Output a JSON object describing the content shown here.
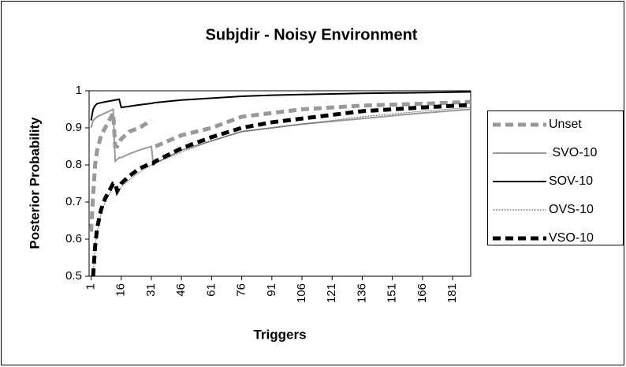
{
  "chart_data": {
    "type": "line",
    "title": "Subjdir - Noisy Environment",
    "x_label": "Triggers",
    "y_label": "Posterior Probability",
    "x": [
      1,
      2,
      3,
      4,
      6,
      8,
      10,
      12,
      13,
      14,
      15,
      16,
      20,
      25,
      31,
      32,
      33,
      46,
      61,
      76,
      91,
      106,
      136,
      166,
      190
    ],
    "xlim": [
      0,
      190
    ],
    "xticks": [
      1,
      16,
      31,
      46,
      61,
      76,
      91,
      106,
      121,
      136,
      151,
      166,
      181
    ],
    "ylim": [
      0.5,
      1
    ],
    "yticks": [
      1,
      0.9,
      0.8,
      0.7,
      0.6,
      0.5
    ],
    "legend": "right",
    "series": [
      {
        "name": "Unset",
        "color": "#999999",
        "width": 5,
        "dash": "10 6",
        "values": [
          0.62,
          0.72,
          0.8,
          0.84,
          0.88,
          0.9,
          0.92,
          0.94,
          0.85,
          0.85,
          0.86,
          0.87,
          0.89,
          0.9,
          0.92,
          null,
          0.85,
          0.88,
          0.9,
          0.93,
          0.94,
          0.95,
          0.96,
          0.965,
          0.97
        ]
      },
      {
        "name": " SVO-10",
        "color": "#999999",
        "width": 2,
        "dash": "none",
        "values": [
          0.9,
          0.92,
          0.925,
          0.93,
          0.935,
          0.94,
          0.945,
          0.95,
          0.81,
          0.815,
          0.82,
          0.82,
          0.83,
          0.84,
          0.85,
          0.8,
          0.805,
          0.84,
          0.865,
          0.89,
          0.9,
          0.91,
          0.925,
          0.94,
          0.95
        ]
      },
      {
        "name": "SOV-10",
        "color": "#000000",
        "width": 2,
        "dash": "none",
        "values": [
          0.92,
          0.95,
          0.96,
          0.965,
          0.968,
          0.97,
          0.972,
          0.974,
          0.975,
          0.976,
          0.977,
          0.955,
          0.958,
          0.962,
          0.966,
          0.967,
          0.968,
          0.975,
          0.98,
          0.985,
          0.988,
          0.99,
          0.993,
          0.995,
          0.997
        ]
      },
      {
        "name": "OVS-10",
        "color": "#444444",
        "width": 1,
        "dash": "1 1",
        "values": [
          null,
          0.5,
          0.58,
          0.62,
          0.67,
          0.7,
          0.72,
          0.74,
          0.74,
          0.72,
          0.73,
          0.74,
          0.76,
          0.78,
          0.8,
          0.8,
          0.805,
          0.835,
          0.865,
          0.89,
          0.9,
          0.91,
          0.93,
          0.945,
          0.955
        ]
      },
      {
        "name": "VSO-10",
        "color": "#000000",
        "width": 5,
        "dash": "10 6",
        "values": [
          null,
          0.5,
          0.58,
          0.63,
          0.68,
          0.71,
          0.73,
          0.75,
          0.75,
          0.73,
          0.74,
          0.75,
          0.77,
          0.79,
          0.805,
          0.805,
          0.81,
          0.845,
          0.875,
          0.9,
          0.915,
          0.925,
          0.945,
          0.955,
          0.962
        ]
      }
    ]
  }
}
